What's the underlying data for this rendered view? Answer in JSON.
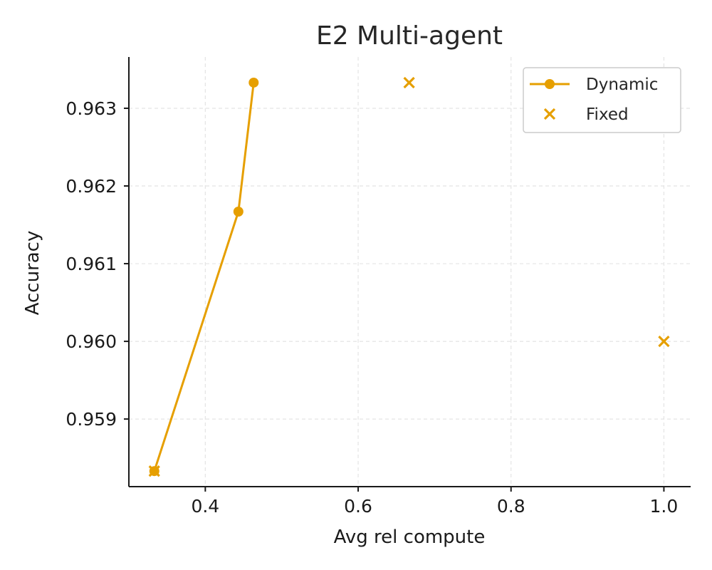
{
  "chart_data": {
    "type": "scatter",
    "title": "E2 Multi-agent",
    "xlabel": "Avg rel compute",
    "ylabel": "Accuracy",
    "xlim": [
      0.3,
      1.035
    ],
    "ylim": [
      0.95813,
      0.96366
    ],
    "x_ticks": [
      0.4,
      0.6,
      0.8,
      1.0
    ],
    "x_tick_labels": [
      "0.4",
      "0.6",
      "0.8",
      "1.0"
    ],
    "y_ticks": [
      0.959,
      0.96,
      0.961,
      0.962,
      0.963
    ],
    "y_tick_labels": [
      "0.959",
      "0.960",
      "0.961",
      "0.962",
      "0.963"
    ],
    "grid": true,
    "legend_position": "top-right",
    "series": [
      {
        "name": "Dynamic",
        "style": "line-circle",
        "color": "#E69F00",
        "x": [
          0.3333,
          0.4433,
          0.4633
        ],
        "y": [
          0.95833,
          0.96167,
          0.96333
        ]
      },
      {
        "name": "Fixed",
        "style": "x-marker",
        "color": "#E69F00",
        "x": [
          0.3333,
          0.6667,
          1.0
        ],
        "y": [
          0.95833,
          0.96333,
          0.96
        ]
      }
    ]
  }
}
